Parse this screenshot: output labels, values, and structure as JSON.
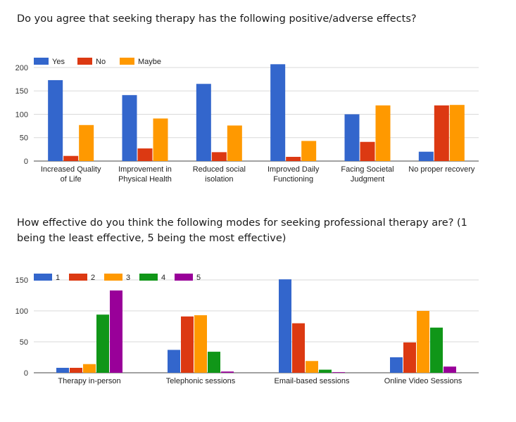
{
  "questions": {
    "q1": "Do you agree that seeking therapy has the following positive/adverse effects?",
    "q2": "How effective do you think the following modes for seeking professional therapy are? (1 being the least effective, 5 being the most effective)"
  },
  "chart_data": [
    {
      "type": "bar",
      "title": "Do you agree that seeking therapy has the following positive/adverse effects?",
      "categories": [
        [
          "Increased Quality",
          "of Life"
        ],
        [
          "Improvement in",
          "Physical Health"
        ],
        [
          "Reduced social",
          "isolation"
        ],
        [
          "Improved Daily",
          "Functioning"
        ],
        [
          "Facing Societal",
          "Judgment"
        ],
        [
          "No proper recovery"
        ]
      ],
      "series": [
        {
          "name": "Yes",
          "color": "#3366cc",
          "values": [
            173,
            141,
            165,
            207,
            100,
            20
          ]
        },
        {
          "name": "No",
          "color": "#dc3912",
          "values": [
            11,
            27,
            19,
            9,
            41,
            119
          ]
        },
        {
          "name": "Maybe",
          "color": "#ff9900",
          "values": [
            77,
            91,
            76,
            43,
            119,
            120
          ]
        }
      ],
      "yticks": [
        0,
        50,
        100,
        150,
        200
      ],
      "ylim": [
        0,
        215
      ],
      "grid": true,
      "legend": "top-left"
    },
    {
      "type": "bar",
      "title": "How effective do you think the following modes for seeking professional therapy are? (1 being the least effective, 5 being the most effective)",
      "categories": [
        [
          "Therapy in-person"
        ],
        [
          "Telephonic sessions"
        ],
        [
          "Email-based sessions"
        ],
        [
          "Online Video Sessions"
        ]
      ],
      "series": [
        {
          "name": "1",
          "color": "#3366cc",
          "values": [
            8,
            37,
            151,
            25
          ]
        },
        {
          "name": "2",
          "color": "#dc3912",
          "values": [
            8,
            91,
            80,
            49
          ]
        },
        {
          "name": "3",
          "color": "#ff9900",
          "values": [
            14,
            93,
            19,
            100
          ]
        },
        {
          "name": "4",
          "color": "#109618",
          "values": [
            94,
            34,
            5,
            73
          ]
        },
        {
          "name": "5",
          "color": "#990099",
          "values": [
            133,
            2,
            1,
            10
          ]
        }
      ],
      "yticks": [
        0,
        50,
        100,
        150
      ],
      "ylim": [
        0,
        158
      ],
      "grid": true,
      "legend": "top-left"
    }
  ]
}
